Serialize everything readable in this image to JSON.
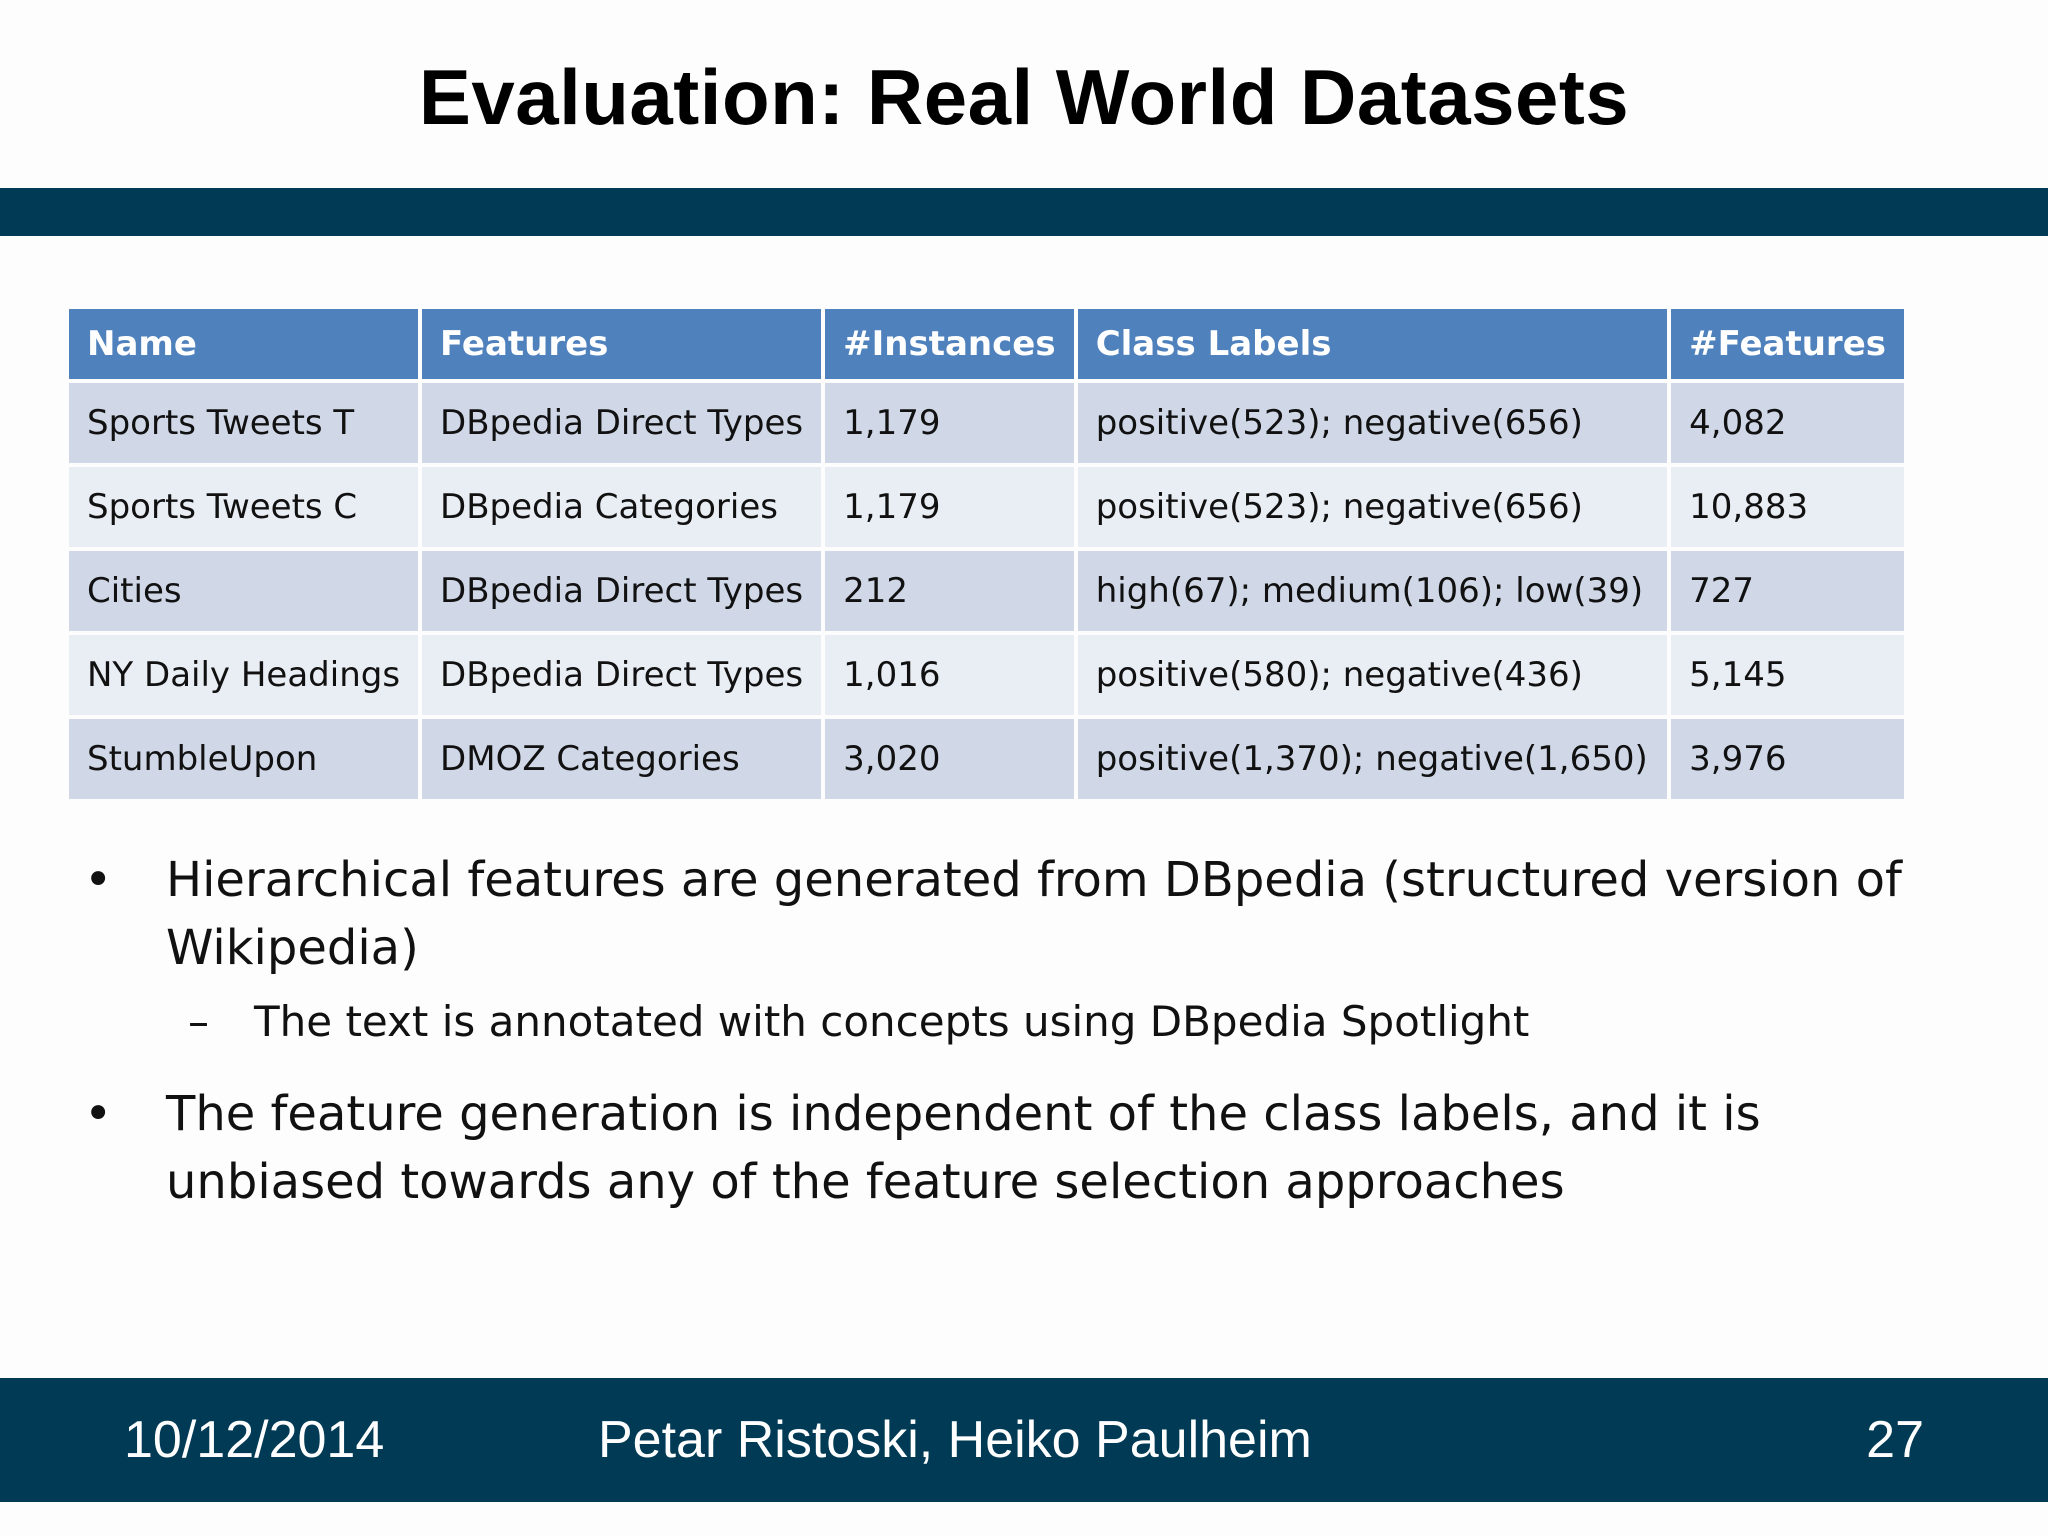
{
  "slide": {
    "title": "Evaluation: Real World Datasets"
  },
  "table": {
    "headers": [
      "Name",
      "Features",
      "#Instances",
      "Class Labels",
      "#Features"
    ],
    "rows": [
      [
        "Sports Tweets T",
        "DBpedia Direct Types",
        "1,179",
        "positive(523); negative(656)",
        "4,082"
      ],
      [
        "Sports Tweets C",
        "DBpedia Categories",
        "1,179",
        "positive(523); negative(656)",
        "10,883"
      ],
      [
        "Cities",
        "DBpedia Direct Types",
        "212",
        "high(67); medium(106); low(39)",
        "727"
      ],
      [
        "NY Daily Headings",
        "DBpedia Direct Types",
        "1,016",
        "positive(580); negative(436)",
        "5,145"
      ],
      [
        "StumbleUpon",
        "DMOZ Categories",
        "3,020",
        "positive(1,370); negative(1,650)",
        "3,976"
      ]
    ]
  },
  "bullets": {
    "marker": "•",
    "sub_marker": "–",
    "b1": "Hierarchical features are generated from DBpedia (structured version of Wikipedia)",
    "b1_sub": "The text is annotated with concepts using DBpedia Spotlight",
    "b2": "The feature generation is independent of the class labels, and it is unbiased towards any of the feature selection approaches"
  },
  "footer": {
    "date": "10/12/2014",
    "authors": "Petar Ristoski, Heiko Paulheim",
    "page_number": "27"
  },
  "colors": {
    "band": "#003a55",
    "table_header": "#4f81bd",
    "row_odd": "#d0d8e8",
    "row_even": "#e9edf4"
  }
}
